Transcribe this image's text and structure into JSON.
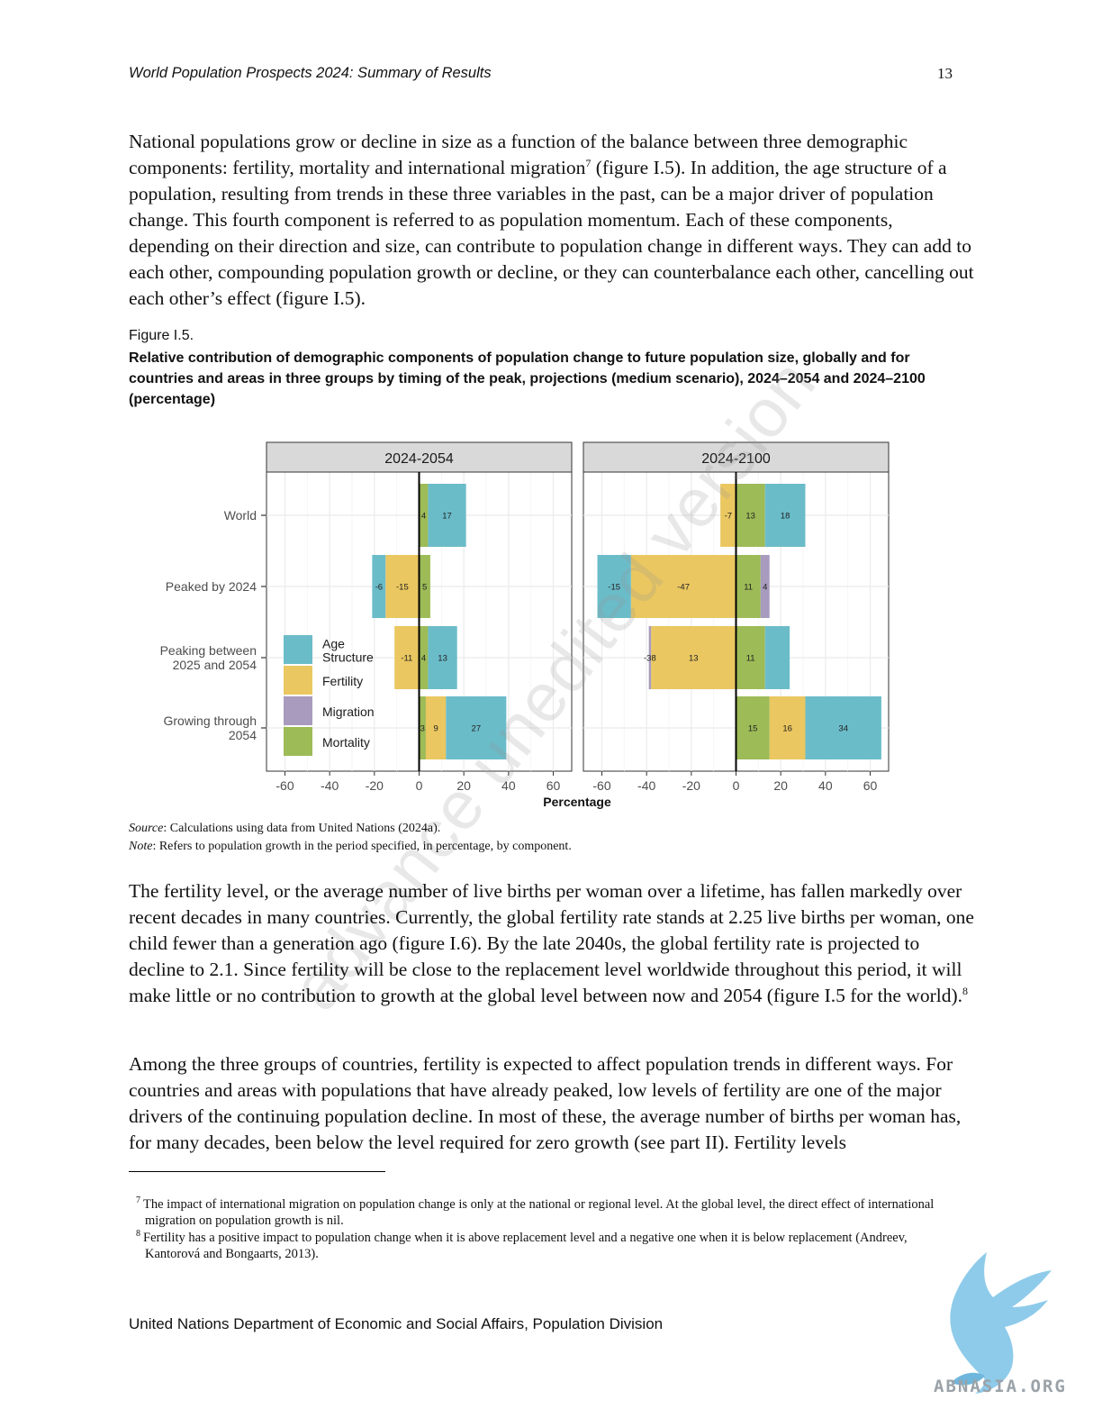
{
  "header": {
    "title": "World Population Prospects 2024: Summary of Results",
    "page_number": "13"
  },
  "paragraphs": {
    "p1_a": "National populations grow or decline in size as a function of the balance between three demographic components: fertility, mortality and international migration",
    "p1_ref": "7",
    "p1_b": " (figure I.5). In addition, the age structure of a population, resulting from trends in these three variables in the past, can be a major driver of population change. This fourth component is referred to as population momentum. Each of these components, depending on their direction and size, can contribute to population change in different ways. They can add to each other, compounding population growth or decline, or they can counterbalance each other, cancelling out each other’s effect (figure I.5).",
    "p2_a": "The fertility level, or the average number of live births per woman over a lifetime, has fallen markedly over recent decades in many countries. Currently, the global fertility rate stands at 2.25 live births per woman, one child fewer than a generation ago (figure I.6). By the late 2040s, the global fertility rate is projected to decline to 2.1. Since fertility will be close to the replacement level worldwide throughout this period, it will make little or no contribution to growth at the global level between now and 2054 (figure I.5 for the world).",
    "p2_ref": "8",
    "p3": "Among the three groups of countries, fertility is expected to affect population trends in different ways. For countries and areas with populations that have already peaked, low levels of fertility are one of the major drivers of the continuing population decline. In most of these, the average number of births per woman has, for many decades, been below the level required for zero growth (see part II). Fertility levels"
  },
  "figure": {
    "label": "Figure I.5.",
    "caption": "Relative contribution of demographic components of population change to future population size, globally and for countries and areas in three groups by timing of the peak, projections (medium scenario), 2024–2054 and 2024–2100 (percentage)",
    "source_label": "Source",
    "source_text": ": Calculations using data from United Nations (2024a).",
    "note_label": "Note",
    "note_text": ": Refers to population growth in the period specified, in percentage, by component."
  },
  "chart_data": {
    "type": "bar",
    "orientation": "horizontal",
    "stacked": true,
    "xlabel": "Percentage",
    "xlim": [
      -65,
      65
    ],
    "xticks": [
      -60,
      -40,
      -20,
      0,
      20,
      40,
      60
    ],
    "categories": [
      "World",
      "Peaked by 2024",
      "Peaking between 2025 and 2054",
      "Growing through 2054"
    ],
    "panels": [
      "2024-2054",
      "2024-2100"
    ],
    "legend_position": "bottom-left inside first panel",
    "series": [
      {
        "name": "Age Structure",
        "color": "#6bbcc9",
        "values": {
          "2024-2054": [
            17,
            -6,
            13,
            27
          ],
          "2024-2100": [
            18,
            -15,
            11,
            34
          ]
        }
      },
      {
        "name": "Fertility",
        "color": "#eac760",
        "values": {
          "2024-2054": [
            0,
            -15,
            -11,
            9
          ],
          "2024-2100": [
            -7,
            -47,
            -38,
            16
          ]
        }
      },
      {
        "name": "Migration",
        "color": "#a89bbd",
        "values": {
          "2024-2054": [
            0,
            0,
            0,
            0
          ],
          "2024-2100": [
            0,
            4,
            -1,
            0
          ]
        }
      },
      {
        "name": "Mortality",
        "color": "#9dbb57",
        "values": {
          "2024-2054": [
            4,
            5,
            4,
            3
          ],
          "2024-2100": [
            13,
            11,
            13,
            15
          ]
        }
      }
    ],
    "data_labels": {
      "2024-2054": [
        [
          "4",
          "17"
        ],
        [
          "-6",
          "-15",
          "5"
        ],
        [
          "-11",
          "4",
          "13"
        ],
        [
          "3",
          "9",
          "27"
        ]
      ],
      "2024-2100": [
        [
          "-7",
          "13",
          "18"
        ],
        [
          "-15",
          "-47",
          "11",
          "4"
        ],
        [
          "-38",
          "13",
          "11"
        ],
        [
          "15",
          "16",
          "34"
        ]
      ]
    },
    "category_labels": [
      [
        "World"
      ],
      [
        "Peaked by 2024"
      ],
      [
        "Peaking between",
        "2025 and 2054"
      ],
      [
        "Growing through",
        "2054"
      ]
    ],
    "legend_labels": [
      [
        "Age",
        "Structure"
      ],
      [
        "Fertility"
      ],
      [
        "Migration"
      ],
      [
        "Mortality"
      ]
    ],
    "colors": {
      "panel_strip": "#d9d9d9",
      "grid": "#ebebeb",
      "axis_text": "#4d4d4d"
    }
  },
  "watermark": "advance unedited version",
  "footnotes": [
    {
      "mark": "7",
      "text": "The impact of international migration on population change is only at the national or regional level. At the global level, the direct effect of international migration on population growth is nil."
    },
    {
      "mark": "8",
      "text": "Fertility has a positive impact to population change when it is above replacement level and a negative one when it is below replacement (Andreev, Kantorová and Bongaarts, 2013)."
    }
  ],
  "footer": "United Nations Department of Economic and Social Affairs, Population Division",
  "brand": {
    "name": "ABNASIA.ORG",
    "icon": "winged-griffin-logo-icon",
    "color": "#8ecbea"
  }
}
